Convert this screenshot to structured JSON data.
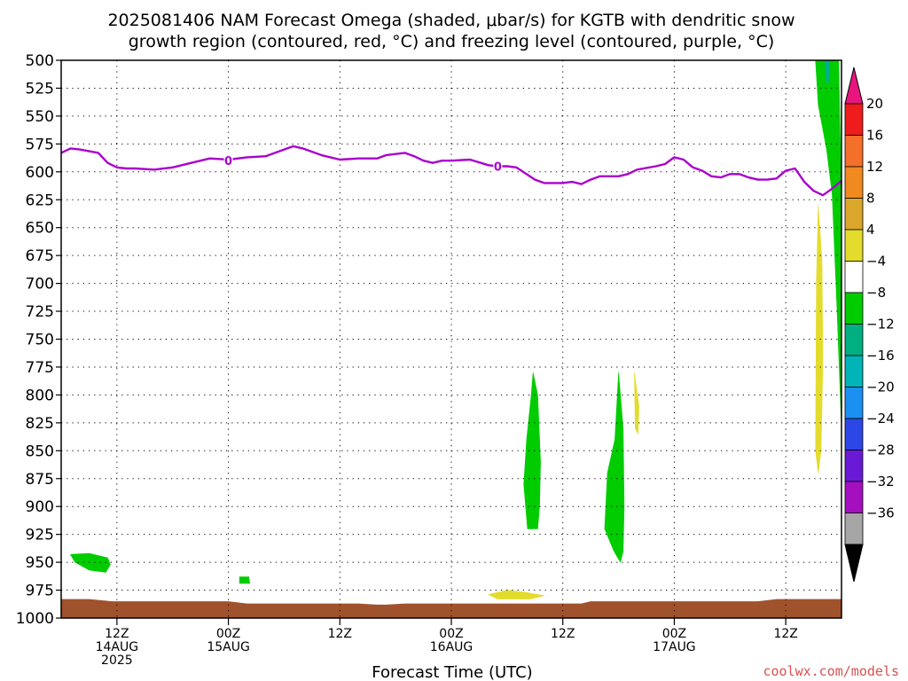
{
  "chart_data": {
    "type": "heatmap",
    "title_line1": "2025081406 NAM Forecast Omega (shaded, μbar/s) for KGTB with dendritic snow",
    "title_line2": "growth region (contoured, red, °C) and freezing level (contoured, purple, °C)",
    "xlabel": "Forecast Time (UTC)",
    "credit": "coolwx.com/models",
    "y_axis": {
      "unit": "hPa",
      "inverted": true,
      "ylim": [
        1000,
        500
      ],
      "ticks": [
        500,
        525,
        550,
        575,
        600,
        625,
        650,
        675,
        700,
        725,
        750,
        775,
        800,
        825,
        850,
        875,
        900,
        925,
        950,
        975,
        1000
      ]
    },
    "x_axis": {
      "unit": "hours since 2025081406",
      "xlim": [
        0,
        84
      ],
      "ticks": [
        {
          "hour": 6,
          "lines": [
            "12Z",
            "14AUG",
            "2025"
          ]
        },
        {
          "hour": 18,
          "lines": [
            "00Z",
            "15AUG"
          ]
        },
        {
          "hour": 30,
          "lines": [
            "12Z"
          ]
        },
        {
          "hour": 42,
          "lines": [
            "00Z",
            "16AUG"
          ]
        },
        {
          "hour": 54,
          "lines": [
            "12Z"
          ]
        },
        {
          "hour": 66,
          "lines": [
            "00Z",
            "17AUG"
          ]
        },
        {
          "hour": 78,
          "lines": [
            "12Z"
          ]
        }
      ]
    },
    "grid": true,
    "freezing_level": {
      "color": "#aa00cc",
      "label": "0",
      "label_points": [
        {
          "t": 18,
          "p": 590
        },
        {
          "t": 47,
          "p": 595
        }
      ],
      "points": [
        {
          "t": 0,
          "p": 583
        },
        {
          "t": 1,
          "p": 579
        },
        {
          "t": 2,
          "p": 580
        },
        {
          "t": 4,
          "p": 583
        },
        {
          "t": 5,
          "p": 592
        },
        {
          "t": 6,
          "p": 596
        },
        {
          "t": 7,
          "p": 597
        },
        {
          "t": 8,
          "p": 597
        },
        {
          "t": 10,
          "p": 598
        },
        {
          "t": 12,
          "p": 596
        },
        {
          "t": 14,
          "p": 592
        },
        {
          "t": 16,
          "p": 588
        },
        {
          "t": 18,
          "p": 589
        },
        {
          "t": 20,
          "p": 587
        },
        {
          "t": 22,
          "p": 586
        },
        {
          "t": 24,
          "p": 580
        },
        {
          "t": 25,
          "p": 577
        },
        {
          "t": 26,
          "p": 579
        },
        {
          "t": 28,
          "p": 585
        },
        {
          "t": 30,
          "p": 589
        },
        {
          "t": 32,
          "p": 588
        },
        {
          "t": 34,
          "p": 588
        },
        {
          "t": 35,
          "p": 585
        },
        {
          "t": 36,
          "p": 584
        },
        {
          "t": 37,
          "p": 583
        },
        {
          "t": 38,
          "p": 586
        },
        {
          "t": 39,
          "p": 590
        },
        {
          "t": 40,
          "p": 592
        },
        {
          "t": 41,
          "p": 590
        },
        {
          "t": 42,
          "p": 590
        },
        {
          "t": 44,
          "p": 589
        },
        {
          "t": 46,
          "p": 594
        },
        {
          "t": 47,
          "p": 595
        },
        {
          "t": 48,
          "p": 595
        },
        {
          "t": 49,
          "p": 596
        },
        {
          "t": 51,
          "p": 607
        },
        {
          "t": 52,
          "p": 610
        },
        {
          "t": 54,
          "p": 610
        },
        {
          "t": 55,
          "p": 609
        },
        {
          "t": 56,
          "p": 611
        },
        {
          "t": 57,
          "p": 607
        },
        {
          "t": 58,
          "p": 604
        },
        {
          "t": 60,
          "p": 604
        },
        {
          "t": 61,
          "p": 602
        },
        {
          "t": 62,
          "p": 598
        },
        {
          "t": 64,
          "p": 595
        },
        {
          "t": 65,
          "p": 593
        },
        {
          "t": 66,
          "p": 587
        },
        {
          "t": 67,
          "p": 589
        },
        {
          "t": 68,
          "p": 596
        },
        {
          "t": 69,
          "p": 599
        },
        {
          "t": 70,
          "p": 604
        },
        {
          "t": 71,
          "p": 605
        },
        {
          "t": 72,
          "p": 602
        },
        {
          "t": 73,
          "p": 602
        },
        {
          "t": 74,
          "p": 605
        },
        {
          "t": 75,
          "p": 607
        },
        {
          "t": 76,
          "p": 607
        },
        {
          "t": 77,
          "p": 606
        },
        {
          "t": 78,
          "p": 599
        },
        {
          "t": 79,
          "p": 597
        },
        {
          "t": 80,
          "p": 609
        },
        {
          "t": 81,
          "p": 617
        },
        {
          "t": 82,
          "p": 621
        },
        {
          "t": 83,
          "p": 615
        },
        {
          "t": 84,
          "p": 608
        }
      ]
    },
    "terrain": {
      "color": "#a0522d",
      "points": [
        {
          "t": 0,
          "p": 983
        },
        {
          "t": 3,
          "p": 983
        },
        {
          "t": 5.5,
          "p": 985
        },
        {
          "t": 18,
          "p": 985
        },
        {
          "t": 20,
          "p": 987
        },
        {
          "t": 32,
          "p": 987
        },
        {
          "t": 34,
          "p": 988
        },
        {
          "t": 35,
          "p": 988
        },
        {
          "t": 37,
          "p": 987
        },
        {
          "t": 56,
          "p": 987
        },
        {
          "t": 57,
          "p": 985
        },
        {
          "t": 75,
          "p": 985
        },
        {
          "t": 77,
          "p": 983
        },
        {
          "t": 84,
          "p": 983
        }
      ]
    },
    "omega_regions": [
      {
        "color": "#00cc00",
        "points": [
          [
            1,
            943
          ],
          [
            3,
            942
          ],
          [
            5,
            946
          ],
          [
            5.3,
            952
          ],
          [
            4.8,
            959
          ],
          [
            3,
            957
          ],
          [
            1.5,
            950
          ]
        ]
      },
      {
        "color": "#00cc00",
        "points": [
          [
            19.2,
            963
          ],
          [
            20.2,
            963
          ],
          [
            20.3,
            969
          ],
          [
            19.2,
            969
          ]
        ]
      },
      {
        "color": "#e3dc2c",
        "points": [
          [
            46,
            979
          ],
          [
            48,
            975
          ],
          [
            50,
            977
          ],
          [
            52,
            980
          ],
          [
            50.5,
            983
          ],
          [
            47,
            983
          ]
        ]
      },
      {
        "color": "#00cc00",
        "points": [
          [
            50.6,
            800
          ],
          [
            50.8,
            780
          ],
          [
            51.3,
            800
          ],
          [
            51.6,
            860
          ],
          [
            51.5,
            900
          ],
          [
            51.3,
            920
          ],
          [
            50.2,
            920
          ],
          [
            49.8,
            880
          ],
          [
            50.1,
            840
          ]
        ]
      },
      {
        "color": "#00cc00",
        "points": [
          [
            60,
            780
          ],
          [
            60.5,
            830
          ],
          [
            60.6,
            900
          ],
          [
            60.5,
            940
          ],
          [
            60.2,
            950
          ],
          [
            59.5,
            940
          ],
          [
            58.5,
            920
          ],
          [
            58.8,
            870
          ],
          [
            59.6,
            840
          ]
        ]
      },
      {
        "color": "#e3dc2c",
        "points": [
          [
            61.7,
            780
          ],
          [
            62.2,
            810
          ],
          [
            62.1,
            835
          ],
          [
            61.8,
            830
          ]
        ]
      },
      {
        "color": "#e3dc2c",
        "points": [
          [
            81.5,
            630
          ],
          [
            81.9,
            680
          ],
          [
            82,
            770
          ],
          [
            81.8,
            850
          ],
          [
            81.5,
            870
          ],
          [
            81.2,
            850
          ],
          [
            81.3,
            700
          ]
        ]
      },
      {
        "color": "#00cc00",
        "points": [
          [
            81.2,
            500
          ],
          [
            83.7,
            500
          ],
          [
            84,
            630
          ],
          [
            84,
            830
          ],
          [
            83.5,
            720
          ],
          [
            83,
            620
          ],
          [
            82.4,
            580
          ],
          [
            81.5,
            540
          ]
        ]
      },
      {
        "color": "#00b090",
        "points": [
          [
            82.2,
            500
          ],
          [
            82.7,
            500
          ],
          [
            82.6,
            520
          ],
          [
            82.4,
            520
          ]
        ]
      }
    ],
    "colorbar": {
      "labels": [
        "20",
        "16",
        "12",
        "8",
        "4",
        "−4",
        "−8",
        "−12",
        "−16",
        "−20",
        "−24",
        "−28",
        "−32",
        "−36"
      ],
      "over_color": "#e8157e",
      "under_color": "#000000",
      "colors": [
        "#ee1c1c",
        "#f46f2a",
        "#f08a1e",
        "#dba72a",
        "#e3dc2c",
        "#ffffff",
        "#00cc00",
        "#00b080",
        "#00b4b8",
        "#1a90f0",
        "#2b47e6",
        "#6a1ad6",
        "#a40fbf",
        "#a6a6a6"
      ]
    }
  }
}
